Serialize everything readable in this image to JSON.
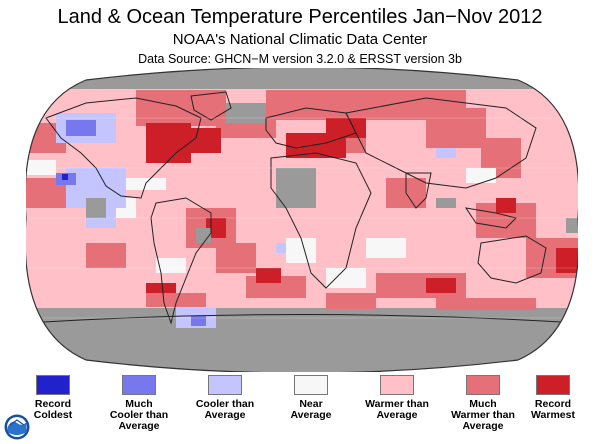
{
  "header": {
    "title": "Land & Ocean Temperature Percentiles Jan−Nov 2012",
    "subtitle": "NOAA's National Climatic Data Center",
    "source": "Data Source: GHCN−M version 3.2.0 & ERSST version 3b"
  },
  "colors": {
    "record_coldest": "#2222cc",
    "much_cooler": "#7777ee",
    "cooler": "#c4c4ff",
    "near": "#f7f7f7",
    "warmer": "#ffc0c8",
    "much_warmer": "#e57078",
    "record_warmest": "#cc1f27",
    "no_data": "#9a9a9a",
    "ocean_outline": "#333333"
  },
  "legend": {
    "items": [
      {
        "key": "record_coldest",
        "label": "Record\nColdest"
      },
      {
        "key": "much_cooler",
        "label": "Much\nCooler than\nAverage"
      },
      {
        "key": "cooler",
        "label": "Cooler than\nAverage"
      },
      {
        "key": "near",
        "label": "Near\nAverage"
      },
      {
        "key": "warmer",
        "label": "Warmer than\nAverage"
      },
      {
        "key": "much_warmer",
        "label": "Much\nWarmer than\nAverage"
      },
      {
        "key": "record_warmest",
        "label": "Record\nWarmest"
      }
    ]
  },
  "logo": {
    "icon": "noaa-logo-icon"
  }
}
